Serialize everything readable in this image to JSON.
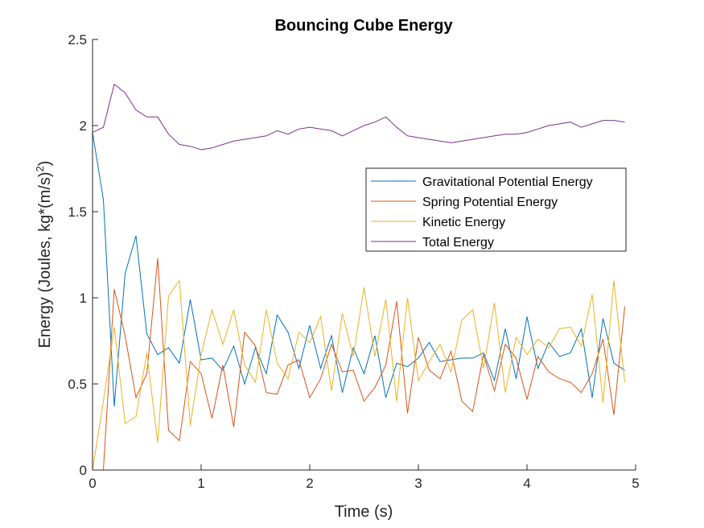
{
  "chart_data": {
    "type": "line",
    "title": "Bouncing Cube Energy",
    "xlabel": "Time (s)",
    "ylabel": {
      "main": "Energy (Joules, kg*(m/s)",
      "sup": "2",
      "end": ")"
    },
    "xlim": [
      0,
      5
    ],
    "ylim": [
      0,
      2.5
    ],
    "xticks": [
      0,
      1,
      2,
      3,
      4,
      5
    ],
    "xtick_labels": [
      "0",
      "1",
      "2",
      "3",
      "4",
      "5"
    ],
    "yticks": [
      0,
      0.5,
      1,
      1.5,
      2,
      2.5
    ],
    "ytick_labels": [
      "0",
      "0.5",
      "1",
      "1.5",
      "2",
      "2.5"
    ],
    "grid": false,
    "legend_position": "right",
    "x": [
      0,
      0.1,
      0.2,
      0.3,
      0.4,
      0.5,
      0.6,
      0.7,
      0.8,
      0.9,
      1.0,
      1.1,
      1.2,
      1.3,
      1.4,
      1.5,
      1.6,
      1.7,
      1.8,
      1.9,
      2.0,
      2.1,
      2.2,
      2.3,
      2.4,
      2.5,
      2.6,
      2.7,
      2.8,
      2.9,
      3.0,
      3.1,
      3.2,
      3.3,
      3.4,
      3.5,
      3.6,
      3.7,
      3.8,
      3.9,
      4.0,
      4.1,
      4.2,
      4.3,
      4.4,
      4.5,
      4.6,
      4.7,
      4.8,
      4.9
    ],
    "series": [
      {
        "name": "Gravitational Potential Energy",
        "color": "#0072BD",
        "values": [
          1.96,
          1.57,
          0.37,
          1.14,
          1.36,
          0.79,
          0.67,
          0.71,
          0.62,
          0.99,
          0.64,
          0.65,
          0.58,
          0.72,
          0.5,
          0.71,
          0.56,
          0.9,
          0.8,
          0.59,
          0.84,
          0.59,
          0.78,
          0.45,
          0.71,
          0.56,
          0.78,
          0.42,
          0.62,
          0.6,
          0.65,
          0.74,
          0.63,
          0.64,
          0.65,
          0.65,
          0.68,
          0.52,
          0.82,
          0.53,
          0.89,
          0.59,
          0.74,
          0.66,
          0.68,
          0.82,
          0.42,
          0.88,
          0.62,
          0.58
        ]
      },
      {
        "name": "Spring Potential Energy",
        "color": "#D95319",
        "values": [
          0,
          0,
          1.05,
          0.78,
          0.42,
          0.56,
          1.23,
          0.23,
          0.17,
          0.63,
          0.56,
          0.3,
          0.61,
          0.25,
          0.8,
          0.72,
          0.45,
          0.44,
          0.61,
          0.64,
          0.42,
          0.53,
          0.73,
          0.57,
          0.58,
          0.4,
          0.48,
          0.61,
          0.98,
          0.33,
          0.77,
          0.58,
          0.53,
          0.69,
          0.4,
          0.34,
          0.67,
          0.46,
          0.73,
          0.65,
          0.41,
          0.66,
          0.57,
          0.53,
          0.51,
          0.45,
          0.56,
          0.76,
          0.32,
          0.95
        ]
      },
      {
        "name": "Kinetic Energy",
        "color": "#EDB120",
        "values": [
          0,
          0.4,
          0.83,
          0.27,
          0.31,
          0.68,
          0.16,
          1.01,
          1.1,
          0.26,
          0.67,
          0.93,
          0.73,
          0.93,
          0.61,
          0.51,
          0.93,
          0.62,
          0.53,
          0.8,
          0.74,
          0.89,
          0.46,
          0.91,
          0.66,
          1.06,
          0.66,
          0.99,
          0.4,
          1.0,
          0.52,
          0.63,
          0.73,
          0.57,
          0.87,
          0.93,
          0.59,
          0.97,
          0.45,
          0.77,
          0.67,
          0.76,
          0.71,
          0.82,
          0.83,
          0.72,
          1.02,
          0.39,
          1.1,
          0.51
        ]
      },
      {
        "name": "Total Energy",
        "color": "#7E2F8E",
        "values": [
          1.96,
          1.99,
          2.24,
          2.19,
          2.09,
          2.05,
          2.05,
          1.95,
          1.89,
          1.88,
          1.86,
          1.87,
          1.89,
          1.91,
          1.92,
          1.93,
          1.94,
          1.97,
          1.95,
          1.98,
          1.99,
          1.98,
          1.97,
          1.94,
          1.97,
          2.0,
          2.02,
          2.05,
          1.99,
          1.94,
          1.93,
          1.92,
          1.91,
          1.9,
          1.91,
          1.92,
          1.93,
          1.94,
          1.95,
          1.95,
          1.96,
          1.98,
          2.0,
          2.01,
          2.02,
          1.99,
          2.01,
          2.03,
          2.03,
          2.02
        ]
      }
    ]
  }
}
